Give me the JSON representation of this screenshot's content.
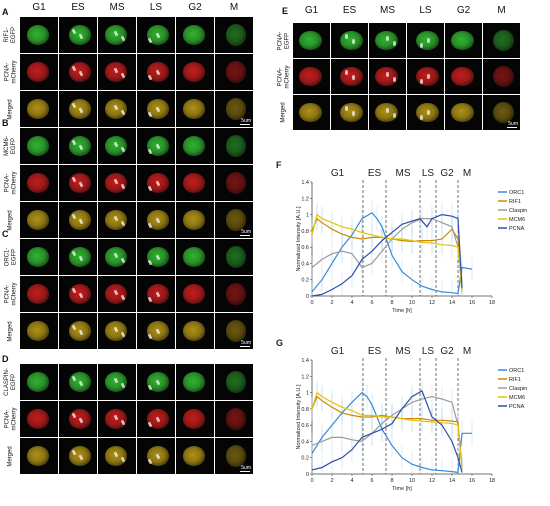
{
  "phases": [
    "G1",
    "ES",
    "MS",
    "LS",
    "G2",
    "M"
  ],
  "scale_label": "5um",
  "left_panels": [
    {
      "letter": "A",
      "rows": [
        "RIF1-\nEGFP",
        "PCNA-\nmCherry",
        "Merged"
      ]
    },
    {
      "letter": "B",
      "rows": [
        "MCM6-\nEGFP",
        "PCNA-\nmCherry",
        "Merged"
      ]
    },
    {
      "letter": "C",
      "rows": [
        "ORC1-\nEGFP",
        "PCNA-\nmCherry",
        "Merged"
      ]
    },
    {
      "letter": "D",
      "rows": [
        "CLASPIN-\nEGFP",
        "PCNA-\nmCherry",
        "Merged"
      ]
    }
  ],
  "panel_e": {
    "letter": "E",
    "rows": [
      "PCNA-\nEGFP",
      "PCNA-\nmCherry",
      "Merged"
    ]
  },
  "colors": {
    "ORC1": "#3a8ad6",
    "RIF1": "#c98a00",
    "Claspin": "#9a9a9a",
    "MCM6": "#e6c400",
    "PCNA": "#2e4fa6",
    "error": "#9ecae8",
    "green": "#36c636",
    "red": "#d62020",
    "merged": "#c0a018"
  },
  "chart_data": [
    {
      "letter": "F",
      "type": "line",
      "xlabel": "Time [h]",
      "ylabel": "Normalized Intensity [A.U.]",
      "xlim": [
        0,
        18
      ],
      "ylim": [
        0,
        1.4
      ],
      "xticks": [
        0,
        2,
        4,
        6,
        8,
        10,
        12,
        14,
        16,
        18
      ],
      "yticks": [
        0,
        0.2,
        0.4,
        0.6,
        0.8,
        1,
        1.2,
        1.4
      ],
      "ytick_labels": [
        "0",
        "0.2",
        "0.4",
        "0.6",
        "0.8",
        "1",
        "1.2",
        "1.4"
      ],
      "phase_boundaries": [
        5.1,
        7.4,
        10.8,
        12.4,
        14.6
      ],
      "legend_position": "right",
      "series": [
        {
          "name": "ORC1",
          "x": [
            0,
            1,
            2,
            3,
            4,
            5,
            6,
            6.5,
            7,
            8,
            9,
            10,
            11,
            12,
            13,
            14,
            14.6,
            15,
            16
          ],
          "y": [
            0.05,
            0.2,
            0.4,
            0.6,
            0.75,
            0.95,
            1.02,
            0.95,
            0.85,
            0.5,
            0.3,
            0.2,
            0.12,
            0.08,
            0.05,
            0.04,
            0.03,
            0.35,
            0.33
          ]
        },
        {
          "name": "RIF1",
          "x": [
            0,
            0.5,
            1,
            2,
            3,
            4,
            5,
            6,
            7,
            8,
            9,
            10,
            11,
            12,
            13,
            14,
            14.6,
            15
          ],
          "y": [
            0.8,
            0.95,
            0.9,
            0.82,
            0.76,
            0.72,
            0.7,
            0.72,
            0.72,
            0.7,
            0.68,
            0.67,
            0.68,
            0.68,
            0.7,
            0.82,
            0.7,
            0.05
          ]
        },
        {
          "name": "Claspin",
          "x": [
            0,
            1,
            2,
            3,
            4,
            5,
            6,
            7,
            8,
            9,
            10,
            11,
            12,
            13,
            14,
            14.6,
            15
          ],
          "y": [
            0.35,
            0.45,
            0.52,
            0.55,
            0.52,
            0.35,
            0.4,
            0.55,
            0.7,
            0.82,
            0.9,
            0.95,
            0.95,
            0.9,
            0.85,
            0.6,
            0.1
          ]
        },
        {
          "name": "MCM6",
          "x": [
            0,
            0.5,
            1,
            2,
            3,
            4,
            5,
            6,
            7,
            8,
            9,
            10,
            11,
            12,
            13,
            14,
            14.6,
            15
          ],
          "y": [
            0.75,
            1.0,
            0.95,
            0.9,
            0.85,
            0.82,
            0.78,
            0.75,
            0.72,
            0.7,
            0.7,
            0.68,
            0.66,
            0.65,
            0.63,
            0.62,
            0.6,
            0.05
          ]
        },
        {
          "name": "PCNA",
          "x": [
            0,
            1,
            2,
            3,
            4,
            5,
            6,
            7,
            8,
            9,
            10,
            10.8,
            11.5,
            12,
            13,
            14,
            14.6,
            15
          ],
          "y": [
            0.0,
            0.02,
            0.08,
            0.15,
            0.25,
            0.45,
            0.55,
            0.68,
            0.78,
            0.88,
            0.92,
            0.95,
            0.85,
            0.95,
            1.0,
            0.98,
            0.95,
            0.1
          ]
        }
      ]
    },
    {
      "letter": "G",
      "type": "line",
      "xlabel": "Time [h]",
      "ylabel": "Normalized Intensity [A.U.]",
      "xlim": [
        0,
        18
      ],
      "ylim": [
        0,
        1.4
      ],
      "xticks": [
        0,
        2,
        4,
        6,
        8,
        10,
        12,
        14,
        16,
        18
      ],
      "yticks": [
        0,
        0.2,
        0.4,
        0.6,
        0.8,
        1,
        1.2,
        1.4
      ],
      "ytick_labels": [
        "0",
        "0.2",
        "0.4",
        "0.6",
        "0.8",
        "1",
        "1.2",
        "1.4"
      ],
      "phase_boundaries": [
        5.1,
        7.4,
        10.8,
        12.4,
        14.6
      ],
      "legend_position": "right",
      "series": [
        {
          "name": "ORC1",
          "x": [
            0,
            1,
            2,
            3,
            4,
            5,
            5.5,
            6,
            7,
            8,
            9,
            10,
            11,
            12,
            13,
            14,
            14.6,
            15,
            16
          ],
          "y": [
            0.25,
            0.45,
            0.6,
            0.75,
            0.88,
            1.0,
            0.95,
            0.85,
            0.55,
            0.35,
            0.2,
            0.12,
            0.08,
            0.05,
            0.04,
            0.03,
            0.02,
            0.5,
            0.5
          ]
        },
        {
          "name": "RIF1",
          "x": [
            0,
            0.5,
            1,
            2,
            3,
            4,
            5,
            6,
            7,
            8,
            9,
            10,
            11,
            12,
            13,
            14,
            14.6,
            15
          ],
          "y": [
            0.8,
            0.95,
            0.9,
            0.82,
            0.75,
            0.72,
            0.7,
            0.7,
            0.72,
            0.7,
            0.68,
            0.68,
            0.68,
            0.66,
            0.66,
            0.65,
            0.64,
            0.05
          ]
        },
        {
          "name": "Claspin",
          "x": [
            0,
            1,
            2,
            3,
            4,
            5,
            6,
            7,
            8,
            9,
            10,
            11,
            12,
            13,
            14,
            14.6,
            15
          ],
          "y": [
            0.35,
            0.4,
            0.45,
            0.45,
            0.42,
            0.4,
            0.5,
            0.62,
            0.72,
            0.8,
            0.88,
            0.92,
            0.95,
            0.92,
            0.88,
            0.6,
            0.1
          ]
        },
        {
          "name": "MCM6",
          "x": [
            0,
            0.5,
            1,
            2,
            3,
            4,
            5,
            6,
            7,
            8,
            9,
            10,
            11,
            12,
            13,
            14,
            14.6,
            15
          ],
          "y": [
            0.8,
            1.0,
            0.95,
            0.88,
            0.82,
            0.78,
            0.72,
            0.72,
            0.7,
            0.7,
            0.68,
            0.66,
            0.65,
            0.64,
            0.63,
            0.62,
            0.6,
            0.05
          ]
        },
        {
          "name": "PCNA",
          "x": [
            0,
            1,
            2,
            3,
            4,
            5,
            6,
            7,
            8,
            9,
            10,
            11,
            12,
            13,
            14,
            14.6,
            15
          ],
          "y": [
            0.05,
            0.08,
            0.15,
            0.2,
            0.3,
            0.45,
            0.5,
            0.55,
            0.62,
            0.8,
            0.95,
            1.02,
            0.7,
            0.6,
            0.4,
            0.2,
            0.02
          ]
        }
      ]
    }
  ]
}
